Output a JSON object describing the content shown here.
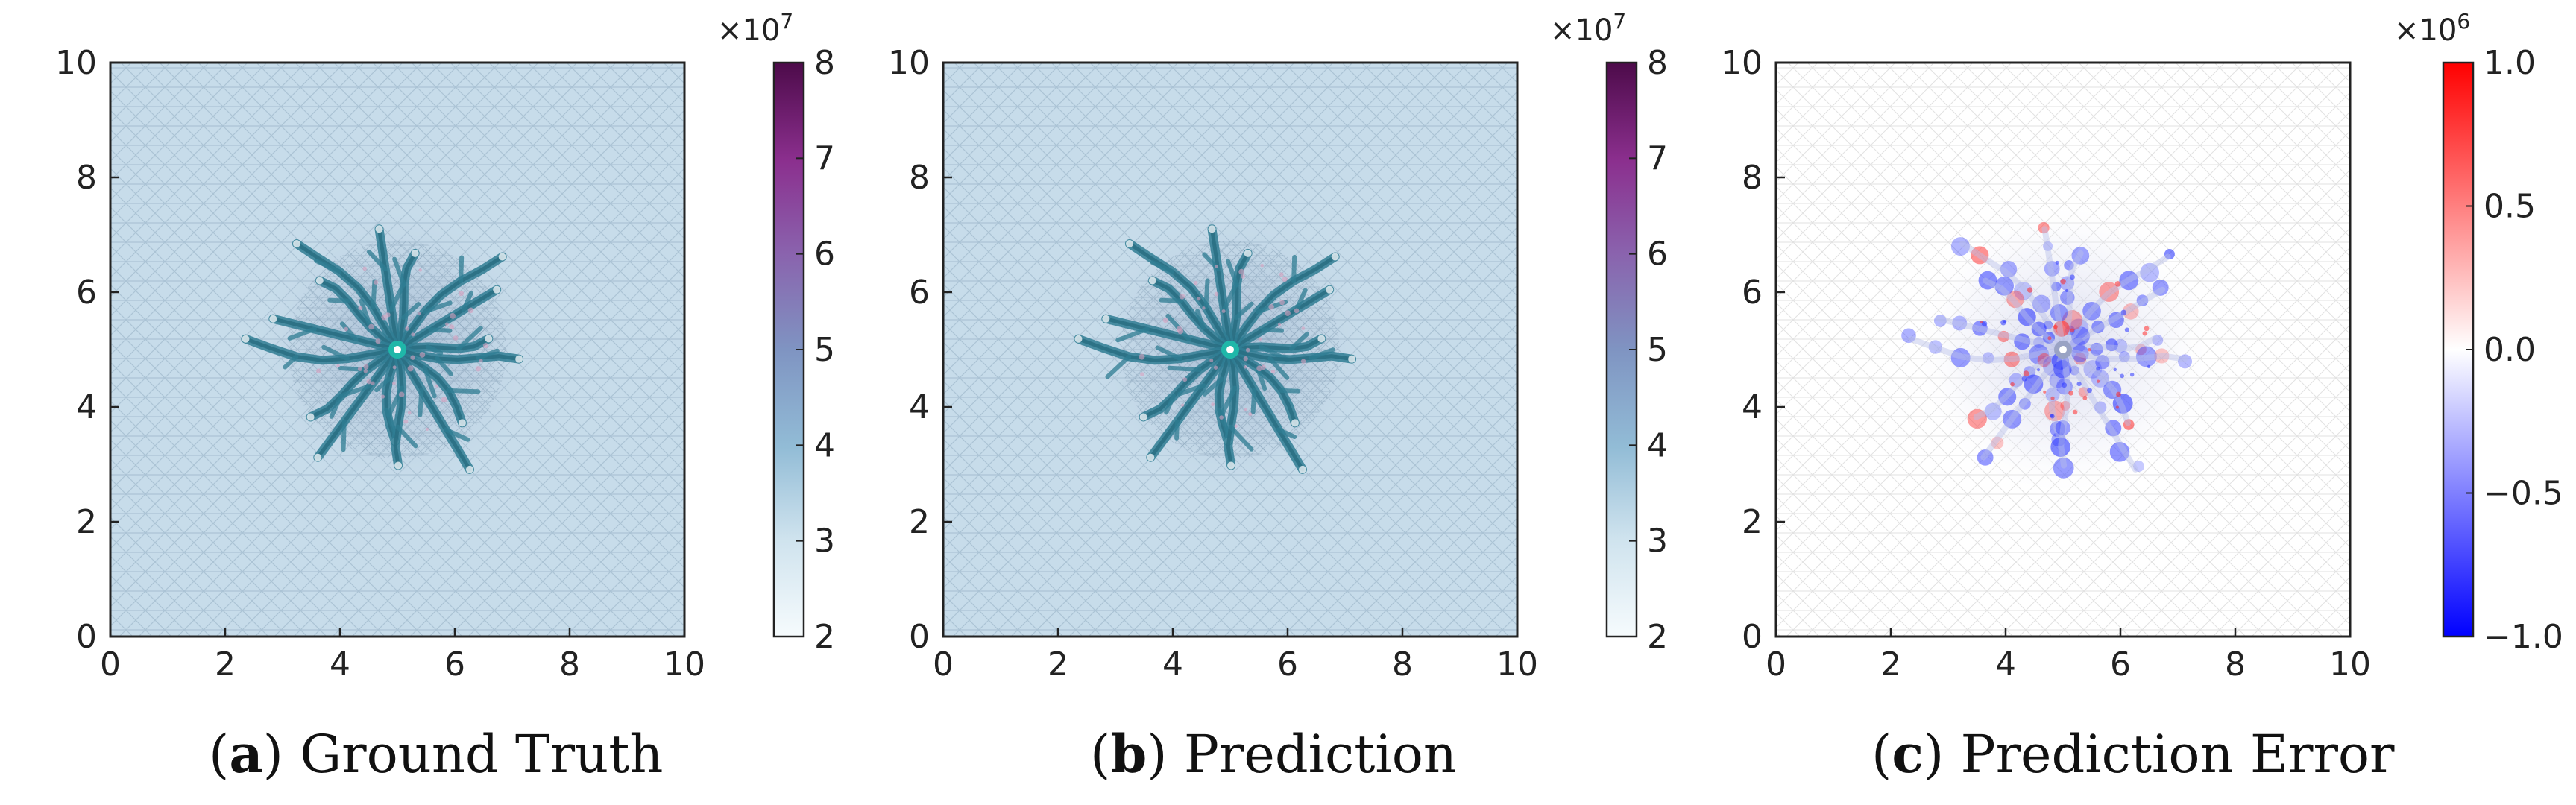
{
  "colors": {
    "field_base": "#c7dcea",
    "channel": "#2f7d93",
    "channel_dark": "#2a6f83",
    "well": "#1fb7a9",
    "error_pos": "#ff2a2a",
    "error_neg": "#2a35ff"
  },
  "chart_data": [
    {
      "type": "heatmap",
      "panel_id": "a",
      "caption_letter": "a",
      "caption_text": "Ground Truth",
      "xlim": [
        0,
        10
      ],
      "ylim": [
        0,
        10
      ],
      "xticks": [
        "0",
        "2",
        "4",
        "6",
        "8",
        "10"
      ],
      "yticks": [
        "0",
        "2",
        "4",
        "6",
        "8",
        "10"
      ],
      "colorbar": {
        "ticks": [
          "2",
          "3",
          "4",
          "5",
          "6",
          "7",
          "8"
        ],
        "range": [
          2,
          8
        ],
        "exponent_base": "×10",
        "exponent_power": "7",
        "colormap": "white-blue-purple"
      },
      "injection_point": [
        5,
        5
      ],
      "grid": false
    },
    {
      "type": "heatmap",
      "panel_id": "b",
      "caption_letter": "b",
      "caption_text": "Prediction",
      "xlim": [
        0,
        10
      ],
      "ylim": [
        0,
        10
      ],
      "xticks": [
        "0",
        "2",
        "4",
        "6",
        "8",
        "10"
      ],
      "yticks": [
        "0",
        "2",
        "4",
        "6",
        "8",
        "10"
      ],
      "colorbar": {
        "ticks": [
          "2",
          "3",
          "4",
          "5",
          "6",
          "7",
          "8"
        ],
        "range": [
          2,
          8
        ],
        "exponent_base": "×10",
        "exponent_power": "7",
        "colormap": "white-blue-purple"
      },
      "injection_point": [
        5,
        5
      ],
      "grid": false
    },
    {
      "type": "heatmap",
      "panel_id": "c",
      "caption_letter": "c",
      "caption_text": "Prediction Error",
      "xlim": [
        0,
        10
      ],
      "ylim": [
        0,
        10
      ],
      "xticks": [
        "0",
        "2",
        "4",
        "6",
        "8",
        "10"
      ],
      "yticks": [
        "0",
        "2",
        "4",
        "6",
        "8",
        "10"
      ],
      "colorbar": {
        "ticks": [
          "1.0",
          "0.5",
          "0.0",
          "−0.5",
          "−1.0"
        ],
        "range": [
          -1,
          1
        ],
        "exponent_base": "×10",
        "exponent_power": "6",
        "colormap": "blue-white-red"
      },
      "injection_point": [
        5,
        5
      ],
      "grid": false
    }
  ]
}
